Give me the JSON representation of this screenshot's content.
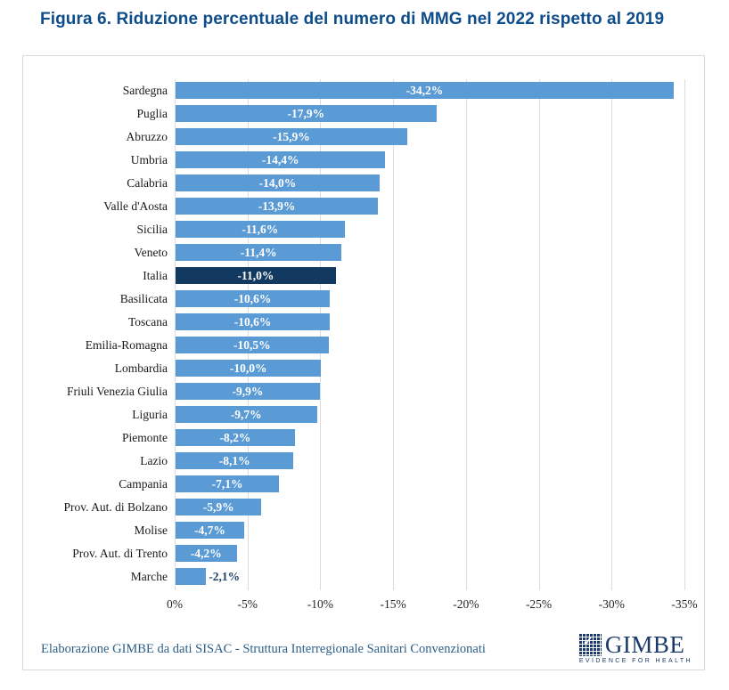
{
  "title": "Figura 6. Riduzione percentuale del numero di MMG nel 2022 rispetto al 2019",
  "footer": {
    "source": "Elaborazione GIMBE da dati SISAC - Struttura Interregionale Sanitari Convenzionati",
    "logo_text": "GIMBE",
    "logo_tagline": "EVIDENCE FOR HEALTH",
    "logo_check": "✓"
  },
  "colors": {
    "title": "#0E4D8A",
    "bar": "#5B9BD5",
    "bar_highlight": "#12395F",
    "value_label_inside": "#FFFFFF",
    "value_label_outside": "#1E4166",
    "grid": "#DCDCDC",
    "axis_text": "#262626",
    "footer_text": "#2C5F88",
    "logo_navy": "#1B3A6B",
    "card_border": "#D9D9D9"
  },
  "chart_data": {
    "type": "bar",
    "orientation": "horizontal",
    "title": "Figura 6. Riduzione percentuale del numero di MMG nel 2022 rispetto al 2019",
    "categories": [
      "Sardegna",
      "Puglia",
      "Abruzzo",
      "Umbria",
      "Calabria",
      "Valle d'Aosta",
      "Sicilia",
      "Veneto",
      "Italia",
      "Basilicata",
      "Toscana",
      "Emilia-Romagna",
      "Lombardia",
      "Friuli Venezia Giulia",
      "Liguria",
      "Piemonte",
      "Lazio",
      "Campania",
      "Prov. Aut. di Bolzano",
      "Molise",
      "Prov. Aut. di Trento",
      "Marche"
    ],
    "values": [
      -34.2,
      -17.9,
      -15.9,
      -14.4,
      -14.0,
      -13.9,
      -11.6,
      -11.4,
      -11.0,
      -10.6,
      -10.6,
      -10.5,
      -10.0,
      -9.9,
      -9.7,
      -8.2,
      -8.1,
      -7.1,
      -5.9,
      -4.7,
      -4.2,
      -2.1
    ],
    "value_labels": [
      "-34,2%",
      "-17,9%",
      "-15,9%",
      "-14,4%",
      "-14,0%",
      "-13,9%",
      "-11,6%",
      "-11,4%",
      "-11,0%",
      "-10,6%",
      "-10,6%",
      "-10,5%",
      "-10,0%",
      "-9,9%",
      "-9,7%",
      "-8,2%",
      "-8,1%",
      "-7,1%",
      "-5,9%",
      "-4,7%",
      "-4,2%",
      "-2,1%"
    ],
    "highlight_category": "Italia",
    "highlight_index": 8,
    "xticks": [
      "0%",
      "-5%",
      "-10%",
      "-15%",
      "-20%",
      "-25%",
      "-30%",
      "-35%"
    ],
    "xlim": [
      0,
      -35
    ],
    "grid": true,
    "legend": false,
    "xlabel": "",
    "ylabel": ""
  }
}
